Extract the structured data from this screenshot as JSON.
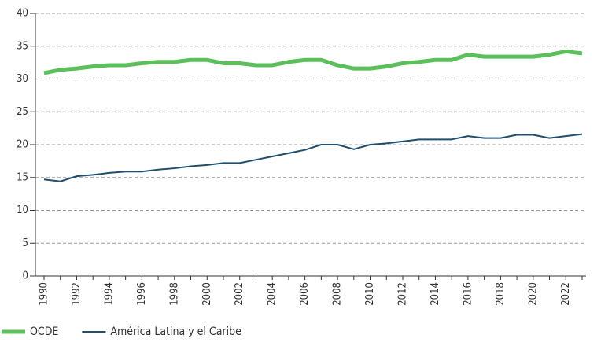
{
  "chart_data": {
    "type": "line",
    "categories": [
      "1990",
      null,
      "1992",
      null,
      "1994",
      null,
      "1996",
      null,
      "1998",
      null,
      "2000",
      null,
      "2002",
      null,
      "2004",
      null,
      "2006",
      null,
      "2008",
      null,
      "2010",
      null,
      "2012",
      null,
      "2014",
      null,
      "2016",
      null,
      "2018",
      null,
      "2020",
      null,
      "2022",
      null
    ],
    "series": [
      {
        "name": "OCDE",
        "color": "#5cbf5c",
        "values": [
          30.9,
          31.4,
          31.6,
          31.9,
          32.1,
          32.1,
          32.4,
          32.6,
          32.6,
          32.9,
          32.9,
          32.4,
          32.4,
          32.1,
          32.1,
          32.6,
          32.9,
          32.9,
          32.1,
          31.6,
          31.6,
          31.9,
          32.4,
          32.6,
          32.9,
          32.9,
          33.7,
          33.4,
          33.4,
          33.4,
          33.4,
          33.7,
          34.2,
          33.9
        ]
      },
      {
        "name": "América Latina y el Caribe",
        "color": "#1f4e6e",
        "values": [
          14.7,
          14.4,
          15.2,
          15.4,
          15.7,
          15.9,
          15.9,
          16.2,
          16.4,
          16.7,
          16.9,
          17.2,
          17.2,
          17.7,
          18.2,
          18.7,
          19.2,
          20.0,
          20.0,
          19.3,
          20.0,
          20.2,
          20.5,
          20.8,
          20.8,
          20.8,
          21.3,
          21.0,
          21.0,
          21.5,
          21.5,
          21.0,
          21.3,
          21.6
        ]
      }
    ],
    "ylim": [
      0,
      40
    ],
    "yticks": [
      0,
      5,
      10,
      15,
      20,
      25,
      30,
      35,
      40
    ],
    "grid": true,
    "legend": "bottom-left"
  }
}
